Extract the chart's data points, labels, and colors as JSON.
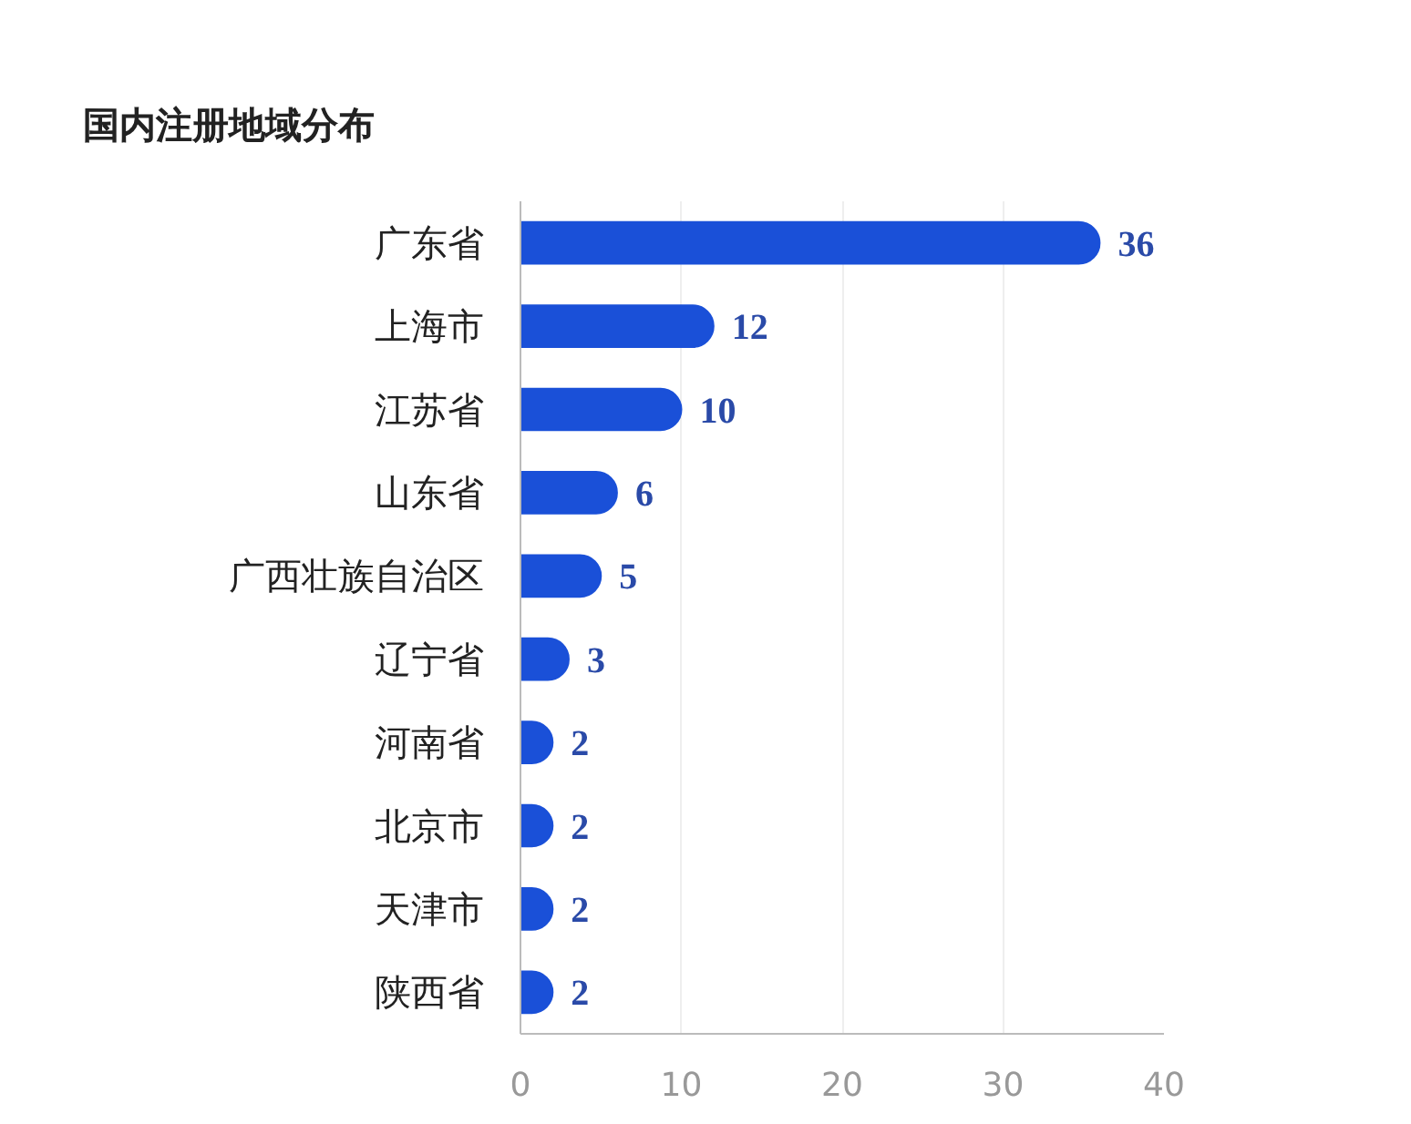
{
  "chart_data": {
    "type": "bar",
    "orientation": "horizontal",
    "title": "国内注册地域分布",
    "categories": [
      "广东省",
      "上海市",
      "江苏省",
      "山东省",
      "广西壮族自治区",
      "辽宁省",
      "河南省",
      "北京市",
      "天津市",
      "陕西省"
    ],
    "values": [
      36,
      12,
      10,
      6,
      5,
      3,
      2,
      2,
      2,
      2
    ],
    "color": "#1a50d8",
    "xlim": [
      0,
      40
    ],
    "xticks": [
      0,
      10,
      20,
      30,
      40
    ],
    "grid": "x",
    "data_labels": true
  }
}
